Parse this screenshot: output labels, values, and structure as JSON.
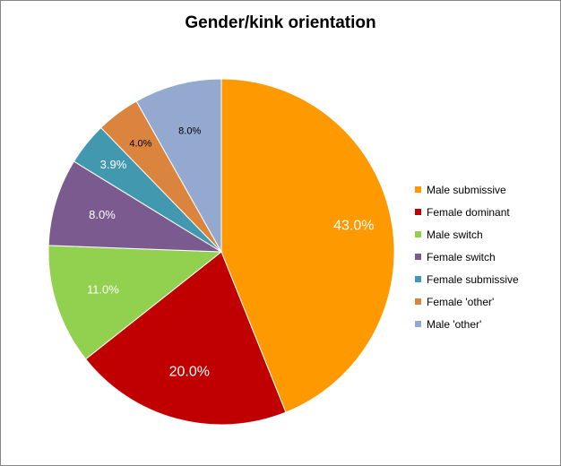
{
  "chart_data": {
    "type": "pie",
    "title": "Gender/kink orientation",
    "categories": [
      "Male submissive",
      "Female dominant",
      "Male switch",
      "Female switch",
      "Female submissive",
      "Female 'other'",
      "Male 'other'"
    ],
    "values": [
      43.0,
      20.0,
      11.0,
      8.0,
      3.9,
      4.0,
      8.0
    ],
    "labels": [
      "43.0%",
      "20.0%",
      "11.0%",
      "8.0%",
      "3.9%",
      "4.0%",
      "8.0%"
    ],
    "colors": [
      "#FF9900",
      "#C00000",
      "#92D050",
      "#7A5A8F",
      "#4198AF",
      "#DB843D",
      "#93A9CF"
    ],
    "label_colors": [
      "#ffffff",
      "#ffffff",
      "#ffffff",
      "#ffffff",
      "#ffffff",
      "#000000",
      "#000000"
    ],
    "start": "12 o'clock",
    "direction": "clockwise",
    "legend_position": "right"
  }
}
